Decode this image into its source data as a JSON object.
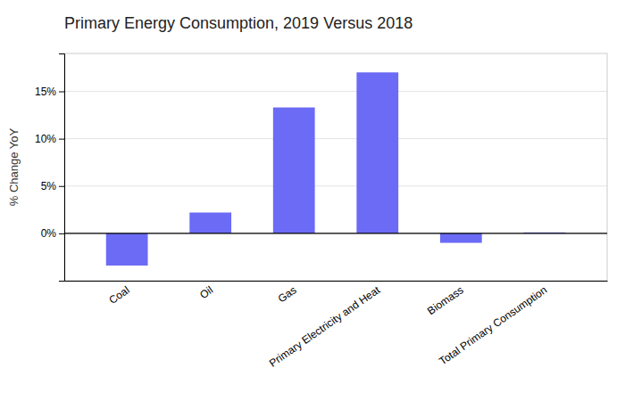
{
  "chart_data": {
    "type": "bar",
    "title": "Primary Energy Consumption, 2019 Versus 2018",
    "categories": [
      "Coal",
      "Oil",
      "Gas",
      "Primary Electricity and Heat",
      "Biomass",
      "Total Primary Consumption"
    ],
    "values": [
      -3.4,
      2.2,
      13.3,
      17.0,
      -1.0,
      0.1
    ],
    "color": "#6B6BF5",
    "ylabel": "% Change YoY",
    "ylim": [
      -5,
      19
    ],
    "yticks": [
      {
        "value": 0,
        "label": "0%"
      },
      {
        "value": 5,
        "label": "5%"
      },
      {
        "value": 10,
        "label": "10%"
      },
      {
        "value": 15,
        "label": "15%"
      }
    ],
    "grid": true
  }
}
